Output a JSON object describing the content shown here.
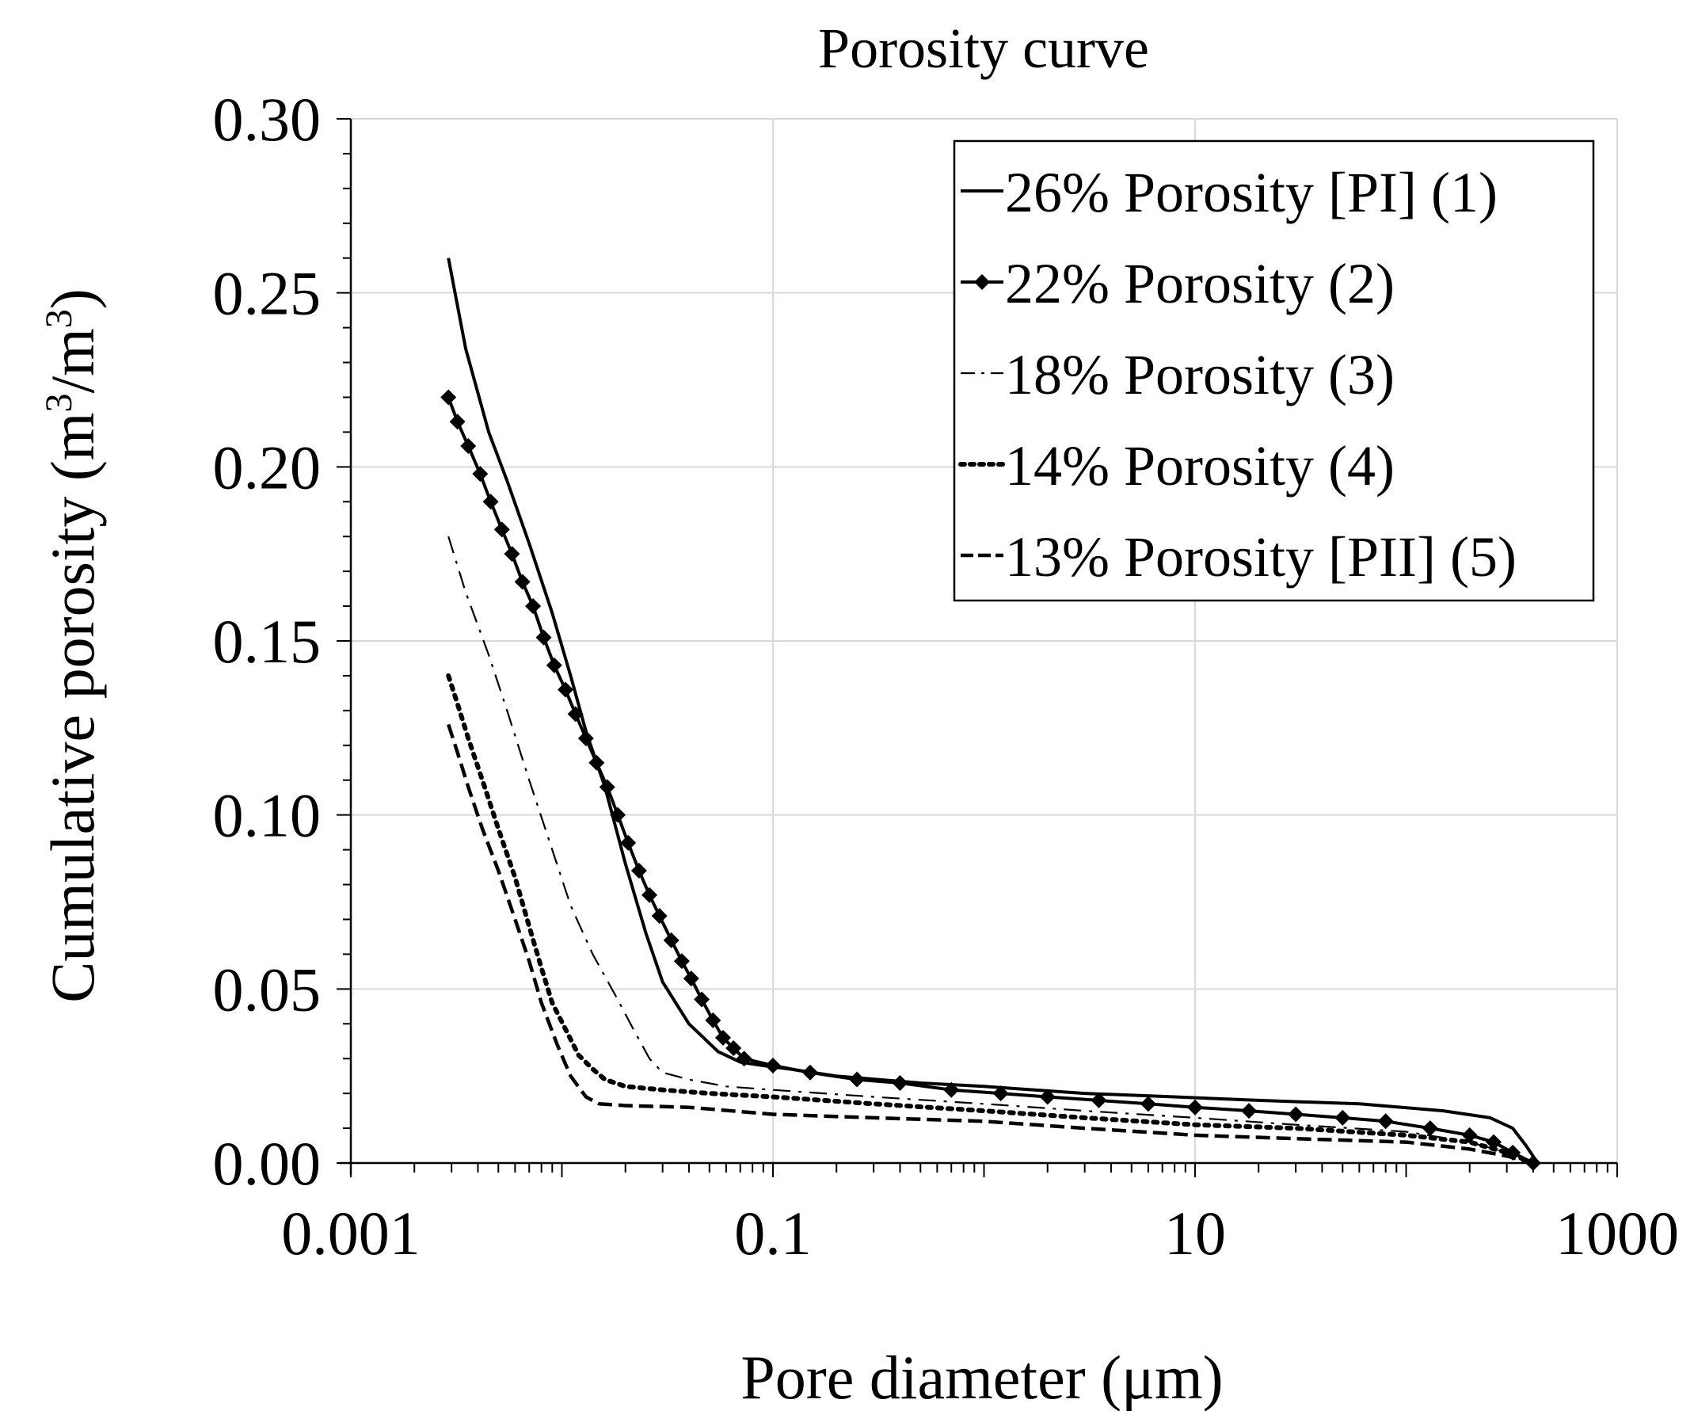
{
  "chart_data": {
    "type": "line",
    "title": "Porosity curve",
    "xlabel": "Pore diameter (μm)",
    "ylabel": {
      "prefix": "Cumulative porosity (m",
      "sup1": "3",
      "middle": "/m",
      "sup2": "3",
      "suffix": ")"
    },
    "x_scale": "log",
    "xlim": [
      0.001,
      1000
    ],
    "ylim": [
      0,
      0.3
    ],
    "x_ticks": [
      {
        "value": 0.001,
        "label": "0.001"
      },
      {
        "value": 0.1,
        "label": "0.1"
      },
      {
        "value": 10,
        "label": "10"
      },
      {
        "value": 1000,
        "label": "1000"
      }
    ],
    "y_ticks": [
      {
        "value": 0.0,
        "label": "0.00"
      },
      {
        "value": 0.05,
        "label": "0.05"
      },
      {
        "value": 0.1,
        "label": "0.10"
      },
      {
        "value": 0.15,
        "label": "0.15"
      },
      {
        "value": 0.2,
        "label": "0.20"
      },
      {
        "value": 0.25,
        "label": "0.25"
      },
      {
        "value": 0.3,
        "label": "0.30"
      }
    ],
    "grid": true,
    "legend_position": "top-right",
    "series": [
      {
        "name": "26% Porosity [PI] (1)",
        "style": "solid",
        "color": "#000000",
        "points": [
          [
            0.0029,
            0.26
          ],
          [
            0.0035,
            0.234
          ],
          [
            0.0045,
            0.21
          ],
          [
            0.0055,
            0.196
          ],
          [
            0.007,
            0.178
          ],
          [
            0.009,
            0.158
          ],
          [
            0.011,
            0.14
          ],
          [
            0.013,
            0.124
          ],
          [
            0.016,
            0.108
          ],
          [
            0.02,
            0.086
          ],
          [
            0.025,
            0.066
          ],
          [
            0.03,
            0.052
          ],
          [
            0.04,
            0.04
          ],
          [
            0.055,
            0.032
          ],
          [
            0.07,
            0.029
          ],
          [
            0.09,
            0.028
          ],
          [
            0.12,
            0.027
          ],
          [
            0.2,
            0.025
          ],
          [
            0.5,
            0.023
          ],
          [
            1,
            0.022
          ],
          [
            3,
            0.02
          ],
          [
            8,
            0.019
          ],
          [
            20,
            0.018
          ],
          [
            60,
            0.017
          ],
          [
            150,
            0.015
          ],
          [
            250,
            0.013
          ],
          [
            320,
            0.01
          ],
          [
            370,
            0.005
          ],
          [
            420,
            0.0
          ]
        ]
      },
      {
        "name": "22% Porosity (2)",
        "style": "solid-diamond",
        "color": "#000000",
        "points": [
          [
            0.0029,
            0.22
          ],
          [
            0.0032,
            0.213
          ],
          [
            0.0036,
            0.206
          ],
          [
            0.0041,
            0.198
          ],
          [
            0.0046,
            0.19
          ],
          [
            0.0052,
            0.182
          ],
          [
            0.0058,
            0.175
          ],
          [
            0.0065,
            0.167
          ],
          [
            0.0073,
            0.16
          ],
          [
            0.0082,
            0.151
          ],
          [
            0.0092,
            0.143
          ],
          [
            0.0104,
            0.136
          ],
          [
            0.0116,
            0.129
          ],
          [
            0.013,
            0.122
          ],
          [
            0.0146,
            0.115
          ],
          [
            0.0164,
            0.108
          ],
          [
            0.0184,
            0.1
          ],
          [
            0.0206,
            0.092
          ],
          [
            0.0232,
            0.084
          ],
          [
            0.026,
            0.077
          ],
          [
            0.029,
            0.071
          ],
          [
            0.033,
            0.064
          ],
          [
            0.037,
            0.058
          ],
          [
            0.041,
            0.053
          ],
          [
            0.046,
            0.047
          ],
          [
            0.052,
            0.041
          ],
          [
            0.058,
            0.036
          ],
          [
            0.065,
            0.033
          ],
          [
            0.073,
            0.03
          ],
          [
            0.1,
            0.028
          ],
          [
            0.15,
            0.026
          ],
          [
            0.25,
            0.024
          ],
          [
            0.4,
            0.023
          ],
          [
            0.7,
            0.021
          ],
          [
            1.2,
            0.02
          ],
          [
            2,
            0.019
          ],
          [
            3.5,
            0.018
          ],
          [
            6,
            0.017
          ],
          [
            10,
            0.016
          ],
          [
            18,
            0.015
          ],
          [
            30,
            0.014
          ],
          [
            50,
            0.013
          ],
          [
            80,
            0.012
          ],
          [
            130,
            0.01
          ],
          [
            200,
            0.008
          ],
          [
            260,
            0.006
          ],
          [
            320,
            0.003
          ],
          [
            400,
            0.0
          ]
        ]
      },
      {
        "name": "18% Porosity (3)",
        "style": "dash-dot",
        "color": "#000000",
        "points": [
          [
            0.0029,
            0.18
          ],
          [
            0.0035,
            0.164
          ],
          [
            0.0045,
            0.146
          ],
          [
            0.0055,
            0.13
          ],
          [
            0.007,
            0.11
          ],
          [
            0.009,
            0.09
          ],
          [
            0.011,
            0.074
          ],
          [
            0.014,
            0.06
          ],
          [
            0.018,
            0.048
          ],
          [
            0.022,
            0.038
          ],
          [
            0.026,
            0.03
          ],
          [
            0.03,
            0.026
          ],
          [
            0.04,
            0.024
          ],
          [
            0.06,
            0.022
          ],
          [
            0.1,
            0.021
          ],
          [
            0.3,
            0.019
          ],
          [
            1,
            0.017
          ],
          [
            3,
            0.015
          ],
          [
            10,
            0.013
          ],
          [
            30,
            0.011
          ],
          [
            100,
            0.009
          ],
          [
            200,
            0.006
          ],
          [
            300,
            0.003
          ],
          [
            400,
            0.0
          ]
        ]
      },
      {
        "name": "14% Porosity (4)",
        "style": "dotted",
        "color": "#000000",
        "points": [
          [
            0.0029,
            0.14
          ],
          [
            0.0032,
            0.132
          ],
          [
            0.0036,
            0.122
          ],
          [
            0.0042,
            0.11
          ],
          [
            0.005,
            0.096
          ],
          [
            0.006,
            0.082
          ],
          [
            0.007,
            0.068
          ],
          [
            0.008,
            0.056
          ],
          [
            0.009,
            0.046
          ],
          [
            0.0105,
            0.038
          ],
          [
            0.012,
            0.031
          ],
          [
            0.014,
            0.027
          ],
          [
            0.016,
            0.024
          ],
          [
            0.02,
            0.022
          ],
          [
            0.03,
            0.021
          ],
          [
            0.05,
            0.02
          ],
          [
            0.1,
            0.019
          ],
          [
            0.3,
            0.017
          ],
          [
            1,
            0.015
          ],
          [
            3,
            0.013
          ],
          [
            10,
            0.011
          ],
          [
            30,
            0.01
          ],
          [
            100,
            0.008
          ],
          [
            200,
            0.006
          ],
          [
            300,
            0.003
          ],
          [
            400,
            0.0
          ]
        ]
      },
      {
        "name": "13% Porosity [PII] (5)",
        "style": "dashed",
        "color": "#000000",
        "points": [
          [
            0.0029,
            0.126
          ],
          [
            0.0032,
            0.118
          ],
          [
            0.0036,
            0.108
          ],
          [
            0.0042,
            0.096
          ],
          [
            0.005,
            0.084
          ],
          [
            0.006,
            0.07
          ],
          [
            0.007,
            0.058
          ],
          [
            0.008,
            0.046
          ],
          [
            0.0095,
            0.034
          ],
          [
            0.011,
            0.025
          ],
          [
            0.013,
            0.019
          ],
          [
            0.015,
            0.017
          ],
          [
            0.02,
            0.0165
          ],
          [
            0.04,
            0.016
          ],
          [
            0.1,
            0.014
          ],
          [
            0.3,
            0.013
          ],
          [
            1,
            0.012
          ],
          [
            3,
            0.01
          ],
          [
            10,
            0.008
          ],
          [
            30,
            0.007
          ],
          [
            100,
            0.006
          ],
          [
            200,
            0.004
          ],
          [
            300,
            0.002
          ],
          [
            400,
            0.0
          ]
        ]
      }
    ]
  }
}
